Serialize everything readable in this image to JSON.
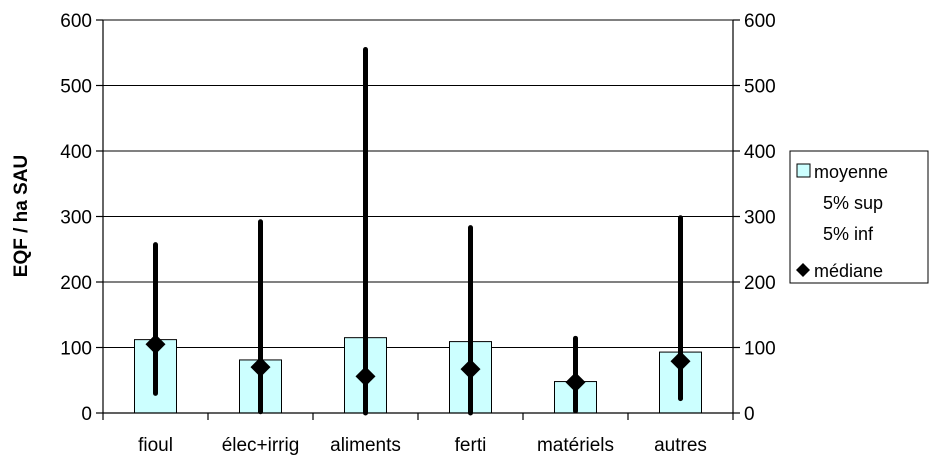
{
  "chart_data": {
    "type": "bar",
    "title": "",
    "xlabel": "",
    "ylabel": "EQF / ha SAU",
    "ylim": [
      0,
      600
    ],
    "yticks": [
      0,
      100,
      200,
      300,
      400,
      500,
      600
    ],
    "ytick_labels": [
      "0",
      "100",
      "200",
      "300",
      "400",
      "500",
      "600"
    ],
    "secondary_yaxis": true,
    "grid": "horizontal",
    "legend_position": "right",
    "categories": [
      "fioul",
      "élec+irrig",
      "aliments",
      "ferti",
      "matériels",
      "autres"
    ],
    "series": [
      {
        "name": "moyenne",
        "kind": "bar",
        "values": [
          112,
          81,
          115,
          109,
          48,
          93
        ]
      },
      {
        "name": "5% sup",
        "kind": "range-top",
        "values": [
          257,
          292,
          555,
          283,
          114,
          298
        ]
      },
      {
        "name": "5% inf",
        "kind": "range-bottom",
        "values": [
          30,
          2,
          0,
          0,
          3,
          22
        ]
      },
      {
        "name": "médiane",
        "kind": "marker",
        "values": [
          105,
          70,
          56,
          67,
          47,
          79
        ]
      }
    ],
    "colors": {
      "bar_fill": "#CCFFFF",
      "bar_stroke": "#000000",
      "range_line": "#000000",
      "marker": "#000000",
      "grid": "#000000"
    }
  }
}
